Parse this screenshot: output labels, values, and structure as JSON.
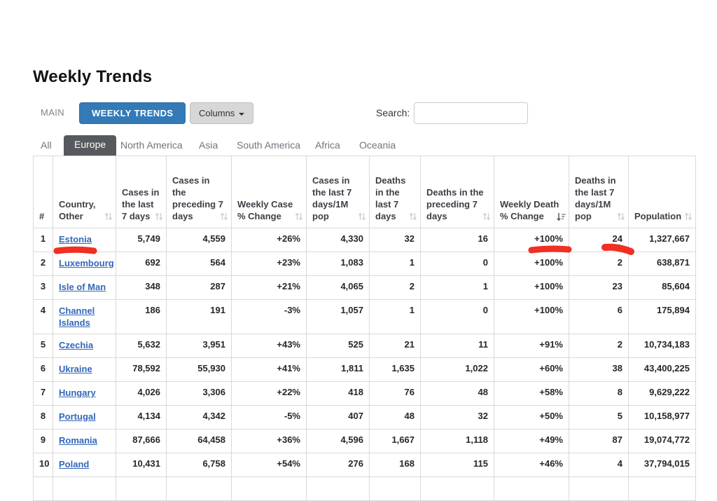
{
  "page": {
    "title": "Weekly Trends"
  },
  "toolbar": {
    "main_label": "MAIN",
    "weekly_trends_label": "WEEKLY TRENDS",
    "columns_label": "Columns",
    "search_label": "Search:",
    "search_value": ""
  },
  "region_tabs": [
    {
      "label": "All",
      "active": false
    },
    {
      "label": "Europe",
      "active": true
    },
    {
      "label": "North America",
      "active": false
    },
    {
      "label": "Asia",
      "active": false
    },
    {
      "label": "South America",
      "active": false
    },
    {
      "label": "Africa",
      "active": false
    },
    {
      "label": "Oceania",
      "active": false
    }
  ],
  "table": {
    "columns": [
      {
        "label": "#",
        "sortable": false
      },
      {
        "label": "Country, Other",
        "sortable": true
      },
      {
        "label": "Cases in the last 7 days",
        "sortable": true
      },
      {
        "label": "Cases in the preceding 7 days",
        "sortable": true
      },
      {
        "label": "Weekly Case % Change",
        "sortable": true
      },
      {
        "label": "Cases in the last 7 days/1M pop",
        "sortable": true
      },
      {
        "label": "Deaths in the last 7 days",
        "sortable": true
      },
      {
        "label": "Deaths in the preceding 7 days",
        "sortable": true
      },
      {
        "label": "Weekly Death % Change",
        "sortable": true,
        "sorted": "desc"
      },
      {
        "label": "Deaths in the last 7 days/1M pop",
        "sortable": true
      },
      {
        "label": "Population",
        "sortable": true
      }
    ],
    "rows": [
      {
        "rank": "1",
        "country": "Estonia",
        "cells": [
          "5,749",
          "4,559",
          "+26%",
          "4,330",
          "32",
          "16",
          "+100%",
          "24",
          "1,327,667"
        ]
      },
      {
        "rank": "2",
        "country": "Luxembourg",
        "cells": [
          "692",
          "564",
          "+23%",
          "1,083",
          "1",
          "0",
          "+100%",
          "2",
          "638,871"
        ]
      },
      {
        "rank": "3",
        "country": "Isle of Man",
        "cells": [
          "348",
          "287",
          "+21%",
          "4,065",
          "2",
          "1",
          "+100%",
          "23",
          "85,604"
        ]
      },
      {
        "rank": "4",
        "country": "Channel Islands",
        "cells": [
          "186",
          "191",
          "-3%",
          "1,057",
          "1",
          "0",
          "+100%",
          "6",
          "175,894"
        ]
      },
      {
        "rank": "5",
        "country": "Czechia",
        "cells": [
          "5,632",
          "3,951",
          "+43%",
          "525",
          "21",
          "11",
          "+91%",
          "2",
          "10,734,183"
        ]
      },
      {
        "rank": "6",
        "country": "Ukraine",
        "cells": [
          "78,592",
          "55,930",
          "+41%",
          "1,811",
          "1,635",
          "1,022",
          "+60%",
          "38",
          "43,400,225"
        ]
      },
      {
        "rank": "7",
        "country": "Hungary",
        "cells": [
          "4,026",
          "3,306",
          "+22%",
          "418",
          "76",
          "48",
          "+58%",
          "8",
          "9,629,222"
        ]
      },
      {
        "rank": "8",
        "country": "Portugal",
        "cells": [
          "4,134",
          "4,342",
          "-5%",
          "407",
          "48",
          "32",
          "+50%",
          "5",
          "10,158,977"
        ]
      },
      {
        "rank": "9",
        "country": "Romania",
        "cells": [
          "87,666",
          "64,458",
          "+36%",
          "4,596",
          "1,667",
          "1,118",
          "+49%",
          "87",
          "19,074,772"
        ]
      },
      {
        "rank": "10",
        "country": "Poland",
        "cells": [
          "10,431",
          "6,758",
          "+54%",
          "276",
          "168",
          "115",
          "+46%",
          "4",
          "37,794,015"
        ]
      },
      {
        "rank": "",
        "country": "",
        "cells": [
          "",
          "",
          "",
          "",
          "",
          "",
          "",
          "",
          ""
        ]
      }
    ]
  },
  "annotations": {
    "marker_color": "#ee2012",
    "items": [
      {
        "name": "estonia-underline",
        "target": "Estonia"
      },
      {
        "name": "weekly-death-change-mark",
        "target": "+100% (row 1)"
      },
      {
        "name": "deaths-per-1m-mark",
        "target": "24 (row 1)"
      }
    ]
  },
  "colors": {
    "primary_button": "#337ab7",
    "primary_button_border": "#2e6da4",
    "columns_button": "#d7d7d7",
    "active_region_tab": "#56595d",
    "country_link": "#3366bb",
    "table_border": "#d9d9d9",
    "marker": "#ee2012"
  }
}
